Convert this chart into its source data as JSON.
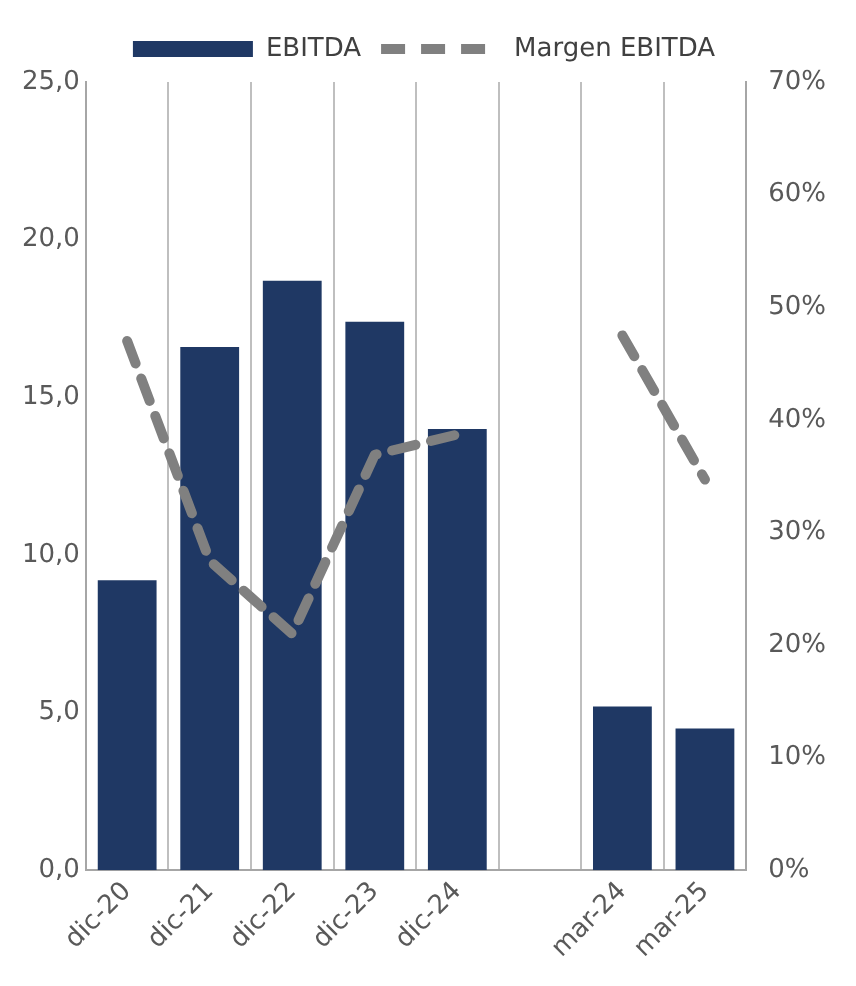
{
  "chart_data": {
    "type": "bar",
    "categories": [
      "dic-20",
      "dic-21",
      "dic-22",
      "dic-23",
      "dic-24",
      null,
      "mar-24",
      "mar-25"
    ],
    "series": [
      {
        "name": "EBITDA",
        "color": "#1f3864",
        "values": [
          9.2,
          16.6,
          18.7,
          17.4,
          14.0,
          null,
          5.2,
          4.5
        ]
      },
      {
        "name": "Margen EBITDA",
        "type": "line",
        "axis": "y2",
        "color": "#808080",
        "line_style": "dashed",
        "marker": "none",
        "values": [
          47,
          27.5,
          21,
          36.9,
          38.7,
          null,
          47.5,
          34.7
        ]
      }
    ],
    "ylim": [
      0,
      25
    ],
    "yticks": [
      {
        "value": 0,
        "label": "0,0"
      },
      {
        "value": 5,
        "label": "5,0"
      },
      {
        "value": 10,
        "label": "10,0"
      },
      {
        "value": 15,
        "label": "15,0"
      },
      {
        "value": 20,
        "label": "20,0"
      },
      {
        "value": 25,
        "label": "25,0"
      }
    ],
    "y2lim": [
      0,
      70
    ],
    "y2ticks": [
      {
        "value": 0,
        "label": "0%"
      },
      {
        "value": 10,
        "label": "10%"
      },
      {
        "value": 20,
        "label": "20%"
      },
      {
        "value": 30,
        "label": "30%"
      },
      {
        "value": 40,
        "label": "40%"
      },
      {
        "value": 50,
        "label": "50%"
      },
      {
        "value": 60,
        "label": "60%"
      },
      {
        "value": 70,
        "label": "70%"
      }
    ],
    "grid": "x",
    "legend": "top"
  }
}
